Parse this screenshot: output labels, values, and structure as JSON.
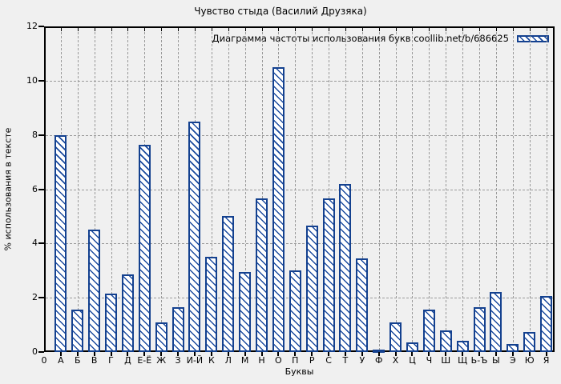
{
  "title": "Чувство стыда (Василий Друзяка)",
  "legend": {
    "label": "Диаграмма частоты использования букв coollib.net/b/686625"
  },
  "axes": {
    "xlabel": "Буквы",
    "ylabel": "% использования в тексте",
    "x_origin_label": "0",
    "yticks": [
      0,
      2,
      4,
      6,
      8,
      10,
      12
    ]
  },
  "colors": {
    "bar_hatch": "#1a4a9e",
    "bar_border": "#14418f",
    "grid": "#9a9a9a",
    "background": "#f0f0f0",
    "frame": "#000000"
  },
  "chart_data": {
    "type": "bar",
    "title": "Чувство стыда (Василий Друзяка)",
    "legend": "Диаграмма частоты использования букв coollib.net/b/686625",
    "legend_position": "top-right",
    "xlabel": "Буквы",
    "ylabel": "% использования в тексте",
    "ylim": [
      0,
      12
    ],
    "grid": true,
    "categories": [
      "А",
      "Б",
      "В",
      "Г",
      "Д",
      "Е-Ё",
      "Ж",
      "З",
      "И-Й",
      "К",
      "Л",
      "М",
      "Н",
      "О",
      "П",
      "Р",
      "С",
      "Т",
      "У",
      "Ф",
      "Х",
      "Ц",
      "Ч",
      "Ш",
      "Щ",
      "Ь-Ъ",
      "Ы",
      "Э",
      "Ю",
      "Я"
    ],
    "values": [
      8.0,
      1.55,
      4.5,
      2.15,
      2.85,
      7.65,
      1.1,
      1.65,
      8.5,
      3.5,
      5.0,
      2.95,
      5.65,
      10.5,
      3.0,
      4.65,
      5.65,
      6.2,
      3.45,
      0.1,
      1.1,
      0.35,
      1.55,
      0.8,
      0.4,
      1.65,
      2.2,
      0.3,
      0.75,
      2.05
    ]
  }
}
